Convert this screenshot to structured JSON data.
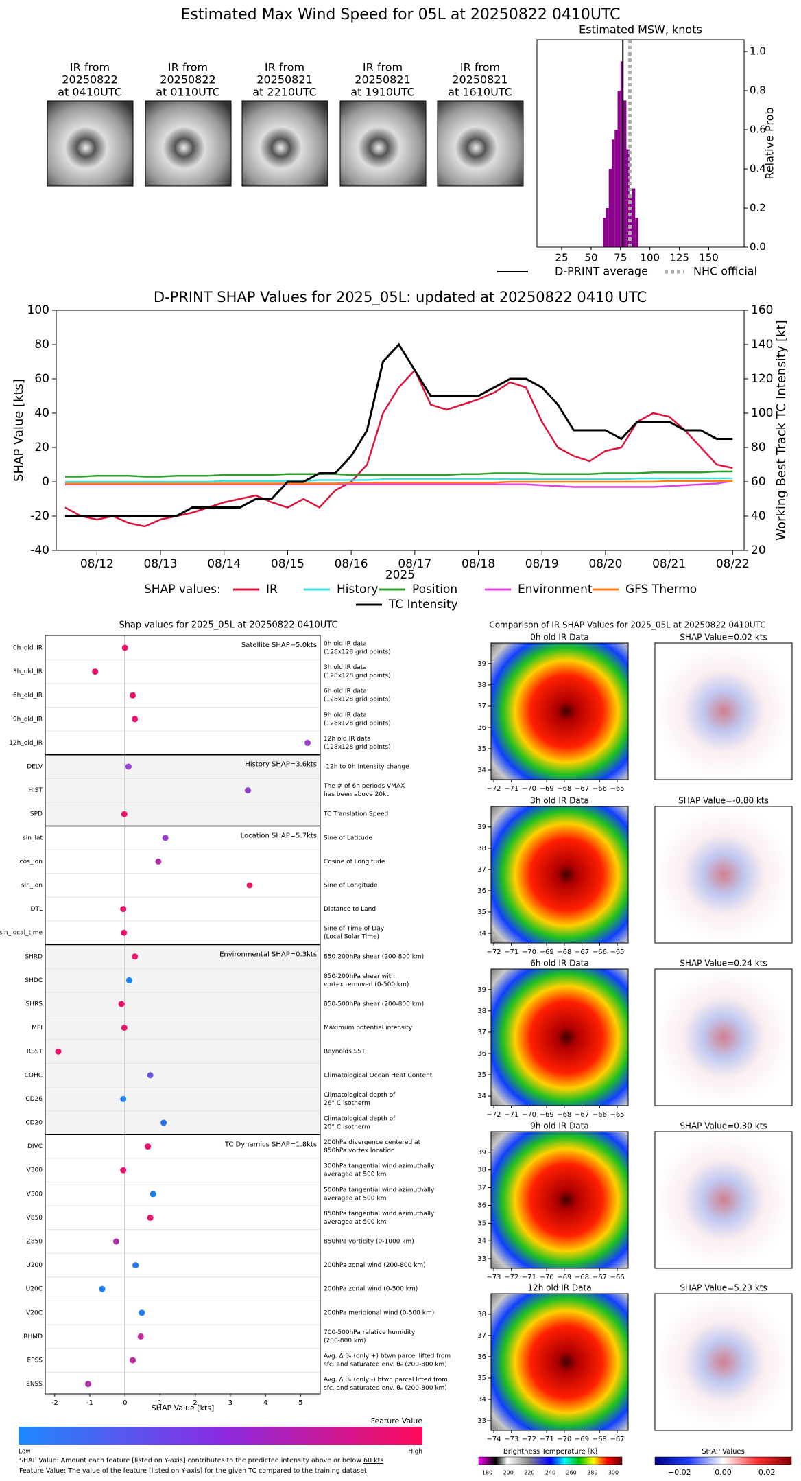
{
  "header": {
    "title": "Estimated Max Wind Speed for 05L at 20250822 0410UTC"
  },
  "thumbnails": [
    [
      "IR from",
      "20250822",
      "at 0410UTC"
    ],
    [
      "IR from",
      "20250822",
      "at 0110UTC"
    ],
    [
      "IR from",
      "20250821",
      "at 2210UTC"
    ],
    [
      "IR from",
      "20250821",
      "at 1910UTC"
    ],
    [
      "IR from",
      "20250821",
      "at 1610UTC"
    ]
  ],
  "chart_data": [
    {
      "type": "histogram",
      "title": "Estimated MSW, knots",
      "y_label": "Relative Prob",
      "bins": [
        60,
        62.5,
        65,
        67.5,
        70,
        72.5,
        75,
        77.5,
        80,
        82.5,
        85,
        87.5,
        90
      ],
      "values": [
        0.15,
        0.2,
        0.4,
        0.55,
        0.6,
        0.8,
        0.95,
        0.75,
        0.5,
        0.25,
        0.3,
        0.15
      ],
      "color": "#8b008b",
      "xlim": [
        4,
        180
      ],
      "xticks": [
        25,
        50,
        75,
        100,
        125,
        150
      ],
      "ylim": [
        0,
        1.06
      ],
      "yticks": [
        {
          "value": 0,
          "label": "0.0"
        },
        {
          "value": 0.2,
          "label": "0.2"
        },
        {
          "value": 0.4,
          "label": "0.4"
        },
        {
          "value": 0.6,
          "label": "0.6"
        },
        {
          "value": 0.8,
          "label": "0.8"
        },
        {
          "value": 1,
          "label": "1.0"
        }
      ],
      "reference_lines": [
        {
          "name": "D-PRINT average",
          "value": 77,
          "color": "#000000",
          "dashed": false
        },
        {
          "name": "NHC official",
          "value": 83,
          "color": "#aaaaaa",
          "dashed": true
        }
      ]
    },
    {
      "type": "line",
      "title": "D-PRINT SHAP Values for 2025_05L: updated at 20250822 0410 UTC",
      "x_label": "2025",
      "y_label": "SHAP Value [kts]",
      "y2_label": "Working Best Track TC Intensity [kt]",
      "legend_title": "SHAP values:",
      "x": [
        11.5,
        11.75,
        12,
        12.25,
        12.5,
        12.75,
        13,
        13.25,
        13.5,
        13.75,
        14,
        14.25,
        14.5,
        14.75,
        15,
        15.25,
        15.5,
        15.75,
        16,
        16.25,
        16.5,
        16.75,
        17,
        17.25,
        17.5,
        17.75,
        18,
        18.25,
        18.5,
        18.75,
        19,
        19.25,
        19.5,
        19.75,
        20,
        20.25,
        20.5,
        20.75,
        21,
        21.25,
        21.5,
        21.75,
        22
      ],
      "series": [
        {
          "name": "IR",
          "color": "#dc143c",
          "values": [
            -15,
            -20,
            -22,
            -20,
            -24,
            -26,
            -22,
            -20,
            -18,
            -15,
            -12,
            -10,
            -8,
            -12,
            -15,
            -10,
            -15,
            -5,
            0,
            10,
            40,
            55,
            65,
            45,
            42,
            45,
            48,
            52,
            58,
            55,
            35,
            20,
            15,
            12,
            18,
            20,
            35,
            40,
            38,
            30,
            20,
            10,
            8
          ]
        },
        {
          "name": "History",
          "color": "#40e0e0",
          "values": [
            0,
            0,
            0,
            0,
            0,
            0,
            0,
            0,
            0,
            0,
            0.5,
            0.5,
            0.5,
            0.5,
            0.5,
            0.5,
            1,
            1,
            1,
            1,
            1.5,
            1.5,
            1.5,
            1.5,
            1.5,
            1.5,
            1.5,
            1.5,
            1.5,
            1.5,
            1.5,
            1.5,
            1.5,
            1.5,
            1.5,
            1.5,
            2,
            2,
            2,
            2,
            2,
            2,
            2
          ]
        },
        {
          "name": "Position",
          "color": "#2ca02c",
          "values": [
            3,
            3,
            3.5,
            3.5,
            3.5,
            3,
            3,
            3.5,
            3.5,
            3.5,
            4,
            4,
            4,
            4,
            4.5,
            4.5,
            4.5,
            4.5,
            4,
            4,
            4,
            4,
            4,
            4,
            4,
            4.5,
            4.5,
            5,
            5,
            5,
            4.5,
            4.5,
            4.5,
            4.5,
            5,
            5,
            5,
            5.5,
            5.5,
            5.5,
            5.5,
            6,
            6
          ]
        },
        {
          "name": "Environment",
          "color": "#e040e0",
          "values": [
            -1.5,
            -1.5,
            -1.5,
            -1.5,
            -1.5,
            -1.5,
            -1.5,
            -1.5,
            -1.5,
            -1.5,
            -1.5,
            -1.5,
            -1.5,
            -1.5,
            -1.5,
            -1.5,
            -1.5,
            -1.5,
            -1.5,
            -1.5,
            -1.5,
            -1.5,
            -1.5,
            -1.5,
            -1.5,
            -1.5,
            -1.5,
            -1.5,
            -1.5,
            -1.5,
            -2,
            -2.5,
            -3,
            -3,
            -3,
            -3,
            -3,
            -3,
            -2.5,
            -2,
            -1.5,
            -1,
            0.5
          ]
        },
        {
          "name": "GFS Thermo",
          "color": "#ff7f0e",
          "values": [
            -1,
            -1,
            -1,
            -1,
            -1,
            -1,
            -1,
            -1,
            -1,
            -1,
            -1,
            -1,
            -1,
            -1,
            -1,
            -1,
            -1,
            -1,
            -0.5,
            -0.5,
            -0.5,
            -0.5,
            -0.5,
            -0.5,
            -0.5,
            -0.5,
            -0.5,
            -0.5,
            0,
            0,
            0,
            0,
            0,
            0,
            0,
            0,
            0,
            0,
            0.5,
            0.5,
            0.5,
            0.5,
            0.5
          ]
        },
        {
          "name": "TC Intensity",
          "color": "#000000",
          "axis": "y2",
          "values": [
            40,
            40,
            40,
            40,
            40,
            40,
            40,
            40,
            45,
            45,
            45,
            45,
            50,
            50,
            60,
            60,
            65,
            65,
            75,
            90,
            130,
            140,
            125,
            110,
            110,
            110,
            110,
            115,
            120,
            120,
            115,
            105,
            90,
            90,
            90,
            85,
            95,
            95,
            95,
            90,
            90,
            85,
            85
          ]
        }
      ],
      "xlim": [
        11.36,
        22.18
      ],
      "xticks": [
        {
          "value": 12,
          "label": "08/12"
        },
        {
          "value": 13,
          "label": "08/13"
        },
        {
          "value": 14,
          "label": "08/14"
        },
        {
          "value": 15,
          "label": "08/15"
        },
        {
          "value": 16,
          "label": "08/16"
        },
        {
          "value": 17,
          "label": "08/17"
        },
        {
          "value": 18,
          "label": "08/18"
        },
        {
          "value": 19,
          "label": "08/19"
        },
        {
          "value": 20,
          "label": "08/20"
        },
        {
          "value": 21,
          "label": "08/21"
        },
        {
          "value": 22,
          "label": "08/22"
        }
      ],
      "ylim": [
        -40,
        100
      ],
      "yticks": [
        -40,
        -20,
        0,
        20,
        40,
        60,
        80,
        100
      ],
      "y2lim": [
        20,
        160
      ],
      "y2ticks": [
        20,
        40,
        60,
        80,
        100,
        120,
        140,
        160
      ]
    },
    {
      "type": "dot",
      "title": "Shap values for 2025_05L at 20250822 0410UTC",
      "x_label": "SHAP Value [kts]",
      "xlim": [
        -2.27,
        5.56
      ],
      "xticks": [
        -2,
        -1,
        0,
        1,
        2,
        3,
        4,
        5
      ],
      "groups": [
        {
          "label": "Satellite SHAP=5.0kts",
          "background": "#ffffff",
          "categories": [
            "0h_old_IR",
            "3h_old_IR",
            "6h_old_IR",
            "9h_old_IR",
            "12h_old_IR"
          ],
          "values": [
            0.0,
            -0.85,
            0.22,
            0.28,
            5.2
          ],
          "colors": [
            "#e8106a",
            "#e8106a",
            "#e8106a",
            "#e8106a",
            "#9b40c8"
          ],
          "descriptions": [
            [
              "0h old IR data",
              "(128x128 grid points)"
            ],
            [
              "3h old IR data",
              "(128x128 grid points)"
            ],
            [
              "6h old IR data",
              "(128x128 grid points)"
            ],
            [
              "9h old IR data",
              "(128x128 grid points)"
            ],
            [
              "12h old IR data",
              "(128x128 grid points)"
            ]
          ]
        },
        {
          "label": "History SHAP=3.6kts",
          "background": "#f3f3f3",
          "categories": [
            "DELV",
            "HIST",
            "SPD"
          ],
          "values": [
            0.1,
            3.5,
            -0.02
          ],
          "colors": [
            "#9040d0",
            "#9040c8",
            "#e8106a"
          ],
          "descriptions": [
            [
              "-12h to 0h Intensity change"
            ],
            [
              "The # of 6h periods VMAX",
              "has been above 20kt"
            ],
            [
              "TC Translation Speed"
            ]
          ]
        },
        {
          "label": "Location SHAP=5.7kts",
          "background": "#ffffff",
          "categories": [
            "sin_lat",
            "cos_lon",
            "sin_lon",
            "DTL",
            "sin_local_time"
          ],
          "values": [
            1.15,
            0.95,
            3.55,
            -0.05,
            -0.03
          ],
          "colors": [
            "#9a3ed0",
            "#b030a8",
            "#e8206a",
            "#e8106a",
            "#e8106a"
          ],
          "descriptions": [
            [
              "Sine of Latitude"
            ],
            [
              "Cosine of Longitude"
            ],
            [
              "Sine of Longitude"
            ],
            [
              "Distance to Land"
            ],
            [
              "Sine of Time of Day",
              "(Local Solar Time)"
            ]
          ]
        },
        {
          "label": "Environmental SHAP=0.3kts",
          "background": "#f3f3f3",
          "categories": [
            "SHRD",
            "SHDC",
            "SHRS",
            "MPI",
            "RSST",
            "COHC",
            "CD26",
            "CD20"
          ],
          "values": [
            0.28,
            0.12,
            -0.1,
            -0.02,
            -1.9,
            0.72,
            -0.05,
            1.1
          ],
          "colors": [
            "#e8106a",
            "#1a80f0",
            "#e8106a",
            "#e8106a",
            "#e8106a",
            "#6a50d8",
            "#1a80f0",
            "#2a70f0"
          ],
          "descriptions": [
            [
              "850-200hPa shear (200-800 km)"
            ],
            [
              "850-200hPa shear with",
              "vortex removed (0-500 km)"
            ],
            [
              "850-500hPa shear (200-800 km)"
            ],
            [
              "Maximum potential intensity"
            ],
            [
              "Reynolds SST"
            ],
            [
              "Climatological Ocean Heat Content"
            ],
            [
              "Climatological depth of",
              "26° C isotherm"
            ],
            [
              "Climatological depth of",
              "20° C isotherm"
            ]
          ]
        },
        {
          "label": "TC Dynamics SHAP=1.8kts",
          "background": "#ffffff",
          "categories": [
            "DIVC",
            "V300",
            "V500",
            "V850",
            "Z850",
            "U200",
            "U20C",
            "V20C",
            "RHMD",
            "EPSS",
            "ENSS"
          ],
          "values": [
            0.65,
            -0.05,
            0.8,
            0.72,
            -0.25,
            0.3,
            -0.65,
            0.48,
            0.45,
            0.22,
            -1.05
          ],
          "colors": [
            "#e8106a",
            "#e8106a",
            "#1a80f0",
            "#e8106a",
            "#b030a8",
            "#2a78f0",
            "#1a80f0",
            "#2a78f0",
            "#c028a0",
            "#c028a0",
            "#b030a8"
          ],
          "descriptions": [
            [
              "200hPa divergence centered at",
              "850hPa vortex location"
            ],
            [
              "300hPa tangential wind azimuthally",
              "averaged at 500 km"
            ],
            [
              "500hPa tangential wind azimuthally",
              "averaged at 500 km"
            ],
            [
              "850hPa tangential wind azimuthally",
              "averaged at 500 km"
            ],
            [
              "850hPa vorticity (0-1000 km)"
            ],
            [
              "200hPa zonal wind (200-800 km)"
            ],
            [
              "200hPa zonal wind (0-500 km)"
            ],
            [
              "200hPa meridional wind (0-500 km)"
            ],
            [
              "700-500hPa relative humidity",
              "(200-800 km)"
            ],
            [
              "Avg. Δ θₑ (only +) btwn parcel lifted from",
              "sfc. and saturated env. θₑ (200-800 km)"
            ],
            [
              "Avg. Δ θₑ (only -) btwn parcel lifted from",
              "sfc. and saturated env. θₑ (200-800 km)"
            ]
          ]
        }
      ],
      "colorbar": {
        "label": "Feature Value",
        "low": "Low",
        "high": "High"
      }
    }
  ],
  "footnotes": [
    {
      "text": "SHAP Value: Amount each feature [listed on Y-axis] contributes to the predicted intensity above or below ",
      "underlined": "60 kts"
    },
    {
      "text": "Feature Value: The value of the feature [listed on Y-axis] for the given TC compared to the training dataset"
    }
  ],
  "ir_panels": {
    "title": "Comparison of IR SHAP Values for 2025_05L at 20250822 0410UTC",
    "rows": [
      {
        "ir_title": "0h old IR Data",
        "shap_title": "SHAP Value=0.02 kts",
        "xticks": [
          "−72",
          "−71",
          "−70",
          "−69",
          "−68",
          "−67",
          "−66",
          "−65"
        ],
        "yticks": [
          "34",
          "35",
          "36",
          "37",
          "38",
          "39"
        ]
      },
      {
        "ir_title": "3h old IR Data",
        "shap_title": "SHAP Value=-0.80 kts",
        "xticks": [
          "−72",
          "−71",
          "−70",
          "−69",
          "−68",
          "−67",
          "−66",
          "−65"
        ],
        "yticks": [
          "34",
          "35",
          "36",
          "37",
          "38",
          "39"
        ]
      },
      {
        "ir_title": "6h old IR Data",
        "shap_title": "SHAP Value=0.24 kts",
        "xticks": [
          "−72",
          "−71",
          "−70",
          "−69",
          "−68",
          "−67",
          "−66",
          "−65"
        ],
        "yticks": [
          "34",
          "35",
          "36",
          "37",
          "38",
          "39"
        ]
      },
      {
        "ir_title": "9h old IR Data",
        "shap_title": "SHAP Value=0.30 kts",
        "xticks": [
          "−73",
          "−72",
          "−71",
          "−70",
          "−69",
          "−68",
          "−67",
          "−66"
        ],
        "yticks": [
          "33",
          "34",
          "35",
          "36",
          "37",
          "38",
          "39"
        ]
      },
      {
        "ir_title": "12h old IR Data",
        "shap_title": "SHAP Value=5.23 kts",
        "xticks": [
          "−74",
          "−73",
          "−72",
          "−71",
          "−70",
          "−69",
          "−68",
          "−67"
        ],
        "yticks": [
          "33",
          "34",
          "35",
          "36",
          "37",
          "38"
        ]
      }
    ],
    "bt_colorbar": {
      "label": "Brightness Temperature [K]",
      "ticks": [
        "180",
        "200",
        "220",
        "240",
        "260",
        "280",
        "300"
      ]
    },
    "shap_colorbar": {
      "label": "SHAP Values",
      "ticks": [
        "−0.02",
        "0.00",
        "0.02"
      ]
    }
  }
}
